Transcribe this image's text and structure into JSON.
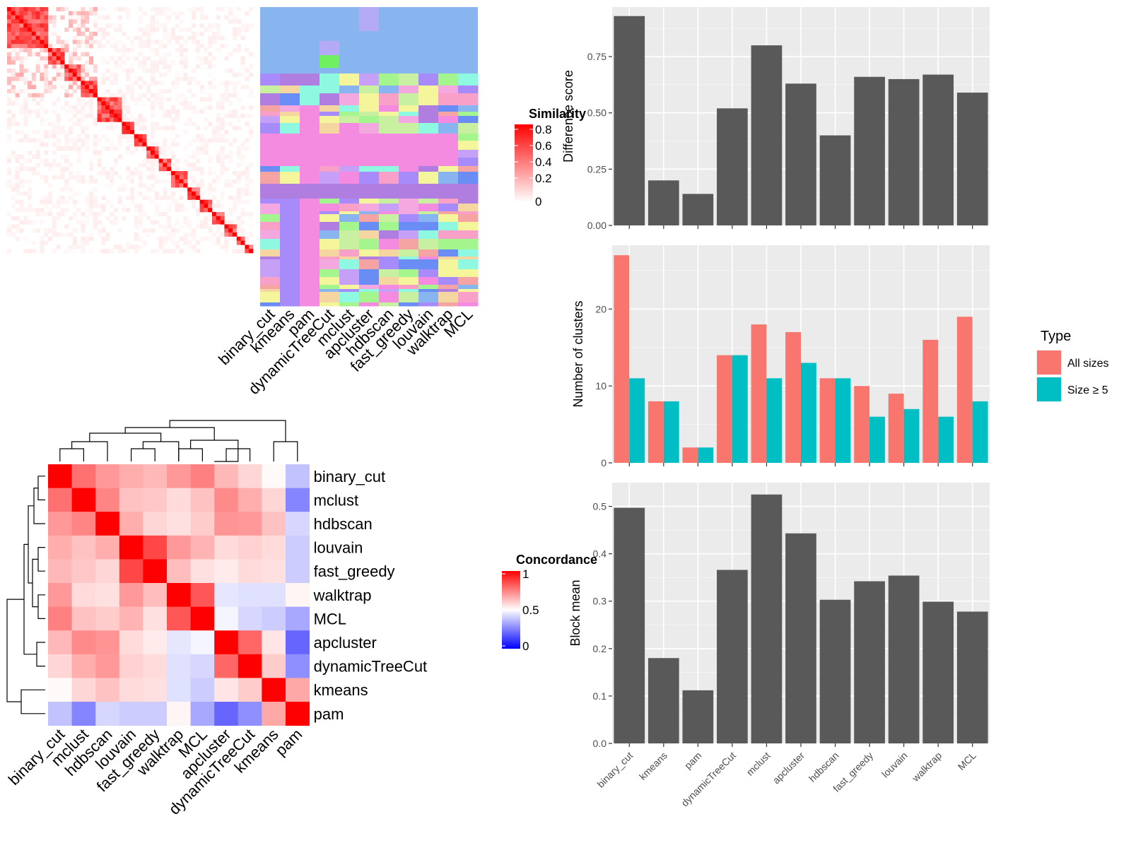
{
  "methods_top": [
    "binary_cut",
    "kmeans",
    "pam",
    "dynamicTreeCut",
    "mclust",
    "apcluster",
    "hdbscan",
    "fast_greedy",
    "louvain",
    "walktrap",
    "MCL"
  ],
  "chart_data": [
    {
      "type": "heatmap",
      "panel": "similarity-matrix",
      "legend_title": "Similarity",
      "legend_ticks": [
        "0.8",
        "0.6",
        "0.4",
        "0.2",
        "0"
      ],
      "columns": [
        "binary_cut",
        "kmeans",
        "pam",
        "dynamicTreeCut",
        "mclust",
        "apcluster",
        "hdbscan",
        "fast_greedy",
        "louvain",
        "walktrap",
        "MCL"
      ]
    },
    {
      "type": "heatmap",
      "panel": "concordance-matrix",
      "legend_title": "Concordance",
      "legend_ticks": [
        "1",
        "0.5",
        "0"
      ],
      "rows": [
        "binary_cut",
        "mclust",
        "hdbscan",
        "louvain",
        "fast_greedy",
        "walktrap",
        "MCL",
        "apcluster",
        "dynamicTreeCut",
        "kmeans",
        "pam"
      ],
      "columns": [
        "binary_cut",
        "mclust",
        "hdbscan",
        "louvain",
        "fast_greedy",
        "walktrap",
        "MCL",
        "apcluster",
        "dynamicTreeCut",
        "kmeans",
        "pam"
      ],
      "values": [
        [
          1.0,
          0.78,
          0.7,
          0.66,
          0.64,
          0.7,
          0.75,
          0.64,
          0.58,
          0.51,
          0.38
        ],
        [
          0.78,
          1.0,
          0.74,
          0.62,
          0.61,
          0.57,
          0.62,
          0.73,
          0.66,
          0.58,
          0.26
        ],
        [
          0.7,
          0.74,
          1.0,
          0.66,
          0.58,
          0.56,
          0.6,
          0.71,
          0.7,
          0.62,
          0.42
        ],
        [
          0.66,
          0.62,
          0.66,
          1.0,
          0.86,
          0.7,
          0.65,
          0.57,
          0.59,
          0.57,
          0.4
        ],
        [
          0.64,
          0.61,
          0.58,
          0.86,
          1.0,
          0.63,
          0.56,
          0.54,
          0.57,
          0.56,
          0.4
        ],
        [
          0.7,
          0.57,
          0.56,
          0.7,
          0.63,
          1.0,
          0.83,
          0.45,
          0.44,
          0.44,
          0.52
        ],
        [
          0.75,
          0.62,
          0.6,
          0.65,
          0.56,
          0.83,
          1.0,
          0.48,
          0.42,
          0.4,
          0.33
        ],
        [
          0.64,
          0.73,
          0.71,
          0.57,
          0.54,
          0.45,
          0.48,
          1.0,
          0.8,
          0.55,
          0.2
        ],
        [
          0.58,
          0.66,
          0.7,
          0.59,
          0.57,
          0.44,
          0.42,
          0.8,
          1.0,
          0.6,
          0.28
        ],
        [
          0.51,
          0.58,
          0.62,
          0.57,
          0.56,
          0.44,
          0.4,
          0.55,
          0.6,
          1.0,
          0.67
        ],
        [
          0.38,
          0.26,
          0.42,
          0.4,
          0.4,
          0.52,
          0.33,
          0.2,
          0.28,
          0.67,
          1.0
        ]
      ]
    },
    {
      "type": "bar",
      "panel": "difference-score",
      "categories": [
        "binary_cut",
        "kmeans",
        "pam",
        "dynamicTreeCut",
        "mclust",
        "apcluster",
        "hdbscan",
        "fast_greedy",
        "louvain",
        "walktrap",
        "MCL"
      ],
      "values": [
        0.93,
        0.2,
        0.14,
        0.52,
        0.8,
        0.63,
        0.4,
        0.66,
        0.65,
        0.67,
        0.59
      ],
      "ylabel": "Difference score",
      "ylim": [
        0,
        0.97
      ],
      "yticks": [
        "0.00",
        "0.25",
        "0.50",
        "0.75"
      ],
      "grid": true
    },
    {
      "type": "bar",
      "panel": "number-of-clusters",
      "categories": [
        "binary_cut",
        "kmeans",
        "pam",
        "dynamicTreeCut",
        "mclust",
        "apcluster",
        "hdbscan",
        "fast_greedy",
        "louvain",
        "walktrap",
        "MCL"
      ],
      "series": [
        {
          "name": "All sizes",
          "color": "#f8766d",
          "values": [
            27,
            8,
            2,
            14,
            18,
            17,
            11,
            10,
            9,
            16,
            19
          ]
        },
        {
          "name": "Size ≥ 5",
          "color": "#00bfc4",
          "values": [
            11,
            8,
            2,
            14,
            11,
            13,
            11,
            6,
            7,
            6,
            8
          ]
        }
      ],
      "ylabel": "Number of clusters",
      "ylim": [
        0,
        28.3
      ],
      "yticks": [
        "0",
        "10",
        "20"
      ],
      "legend_title": "Type",
      "legend_position": "right",
      "grid": true
    },
    {
      "type": "bar",
      "panel": "block-mean",
      "categories": [
        "binary_cut",
        "kmeans",
        "pam",
        "dynamicTreeCut",
        "mclust",
        "apcluster",
        "hdbscan",
        "fast_greedy",
        "louvain",
        "walktrap",
        "MCL"
      ],
      "values": [
        0.497,
        0.18,
        0.112,
        0.366,
        0.525,
        0.443,
        0.303,
        0.342,
        0.354,
        0.299,
        0.278
      ],
      "ylabel": "Block mean",
      "ylim": [
        0,
        0.55
      ],
      "yticks": [
        "0.0",
        "0.1",
        "0.2",
        "0.3",
        "0.4",
        "0.5"
      ],
      "grid": true
    }
  ],
  "colors": {
    "similarity_high": "#ff0000",
    "panel_bg": "#ebebeb",
    "bar_fill": "#595959",
    "concordance_low": "#0000ff"
  }
}
